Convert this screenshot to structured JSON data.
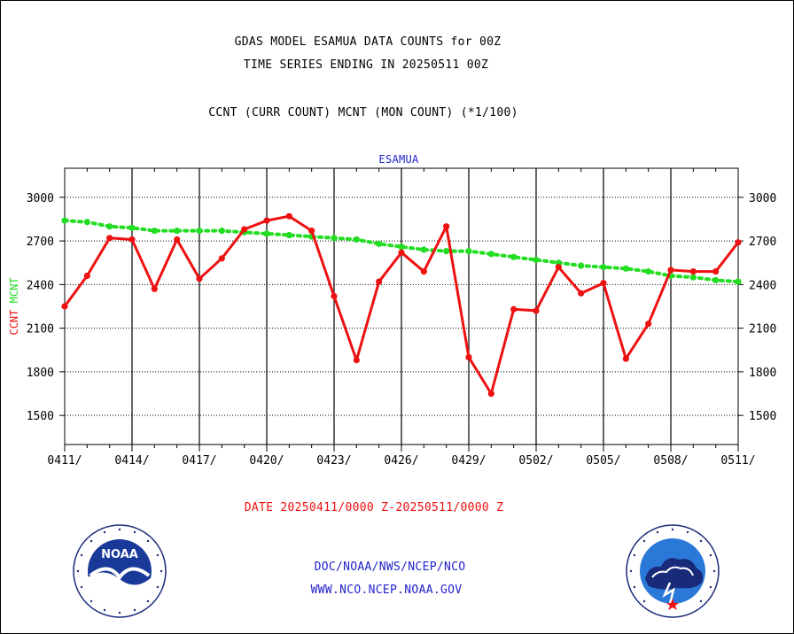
{
  "title_line1": "GDAS MODEL ESAMUA DATA COUNTS for 00Z",
  "title_line2": "TIME SERIES ENDING IN 20250511 00Z",
  "title_line3": "CCNT (CURR COUNT) MCNT (MON COUNT) (*1/100)",
  "panel_label": "ESAMUA",
  "date_range": "DATE 20250411/0000 Z-20250511/0000 Z",
  "footer_line1": "DOC/NOAA/NWS/NCEP/NCO",
  "footer_line2": "WWW.NCO.NCEP.NOAA.GOV",
  "logos": {
    "noaa": {
      "word": "NOAA",
      "ring_text": "NATIONAL OCEANIC AND ATMOSPHERIC ADMINISTRATION · U.S. DEPARTMENT OF COMMERCE"
    },
    "nws": {
      "ring_text": "NATIONAL WEATHER SERVICE"
    }
  },
  "colors": {
    "ccnt": "#ee1111",
    "mcnt": "#22dd22",
    "panel_label": "#2222cc",
    "date": "#ee1111",
    "footer": "#2222cc"
  },
  "chart_data": {
    "type": "line",
    "ylabel_parts": [
      {
        "text": "CCNT",
        "color": "#ee1111"
      },
      {
        "text": "MCNT",
        "color": "#22dd22"
      }
    ],
    "xtick_labels": [
      "0411/",
      "0414/",
      "0417/",
      "0420/",
      "0423/",
      "0426/",
      "0429/",
      "0502/",
      "0505/",
      "0508/",
      "0511/"
    ],
    "yticks": [
      1500,
      1800,
      2100,
      2400,
      2700,
      3000
    ],
    "ylim": [
      1300,
      3200
    ],
    "x_days": 30,
    "grid": true,
    "series": [
      {
        "name": "CCNT",
        "color": "#ee1111",
        "style": "solid",
        "values": [
          2250,
          2460,
          2720,
          2710,
          2370,
          2710,
          2440,
          2580,
          2780,
          2840,
          2870,
          2770,
          2320,
          1880,
          2420,
          2620,
          2490,
          2800,
          1900,
          1650,
          2230,
          2220,
          2520,
          2340,
          2410,
          1890,
          2130,
          2500,
          2490,
          2490,
          2690
        ]
      },
      {
        "name": "MCNT",
        "color": "#22dd22",
        "style": "dotted",
        "values": [
          2840,
          2830,
          2800,
          2790,
          2770,
          2770,
          2770,
          2770,
          2760,
          2750,
          2740,
          2730,
          2720,
          2710,
          2680,
          2660,
          2640,
          2630,
          2630,
          2610,
          2590,
          2570,
          2550,
          2530,
          2520,
          2510,
          2490,
          2460,
          2450,
          2430,
          2420
        ]
      }
    ]
  }
}
